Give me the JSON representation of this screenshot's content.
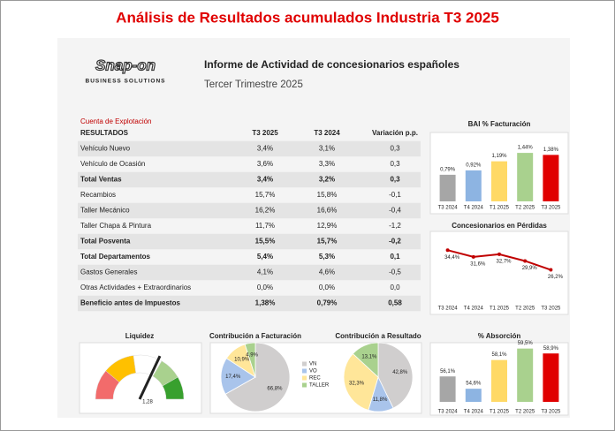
{
  "title": "Análisis de Resultados acumulados Industria T3 2025",
  "logo": {
    "brand": "Snap-on",
    "tagline": "BUSINESS SOLUTIONS"
  },
  "header": {
    "title": "Informe de Actividad de concesionarios españoles",
    "subtitle": "Tercer Trimestre 2025"
  },
  "table": {
    "caption": "Cuenta de Explotación",
    "columns": [
      "RESULTADOS",
      "T3 2025",
      "T3 2024",
      "Variación p.p."
    ],
    "rows": [
      [
        "Vehículo Nuevo",
        "3,4%",
        "3,1%",
        "0,3"
      ],
      [
        "Vehículo de Ocasión",
        "3,6%",
        "3,3%",
        "0,3"
      ],
      [
        "Total Ventas",
        "3,4%",
        "3,2%",
        "0,3"
      ],
      [
        "Recambios",
        "15,7%",
        "15,8%",
        "-0,1"
      ],
      [
        "Taller Mecánico",
        "16,2%",
        "16,6%",
        "-0,4"
      ],
      [
        "Taller Chapa & Pintura",
        "11,7%",
        "12,9%",
        "-1,2"
      ],
      [
        "Total Posventa",
        "15,5%",
        "15,7%",
        "-0,2"
      ],
      [
        "Total Departamentos",
        "5,4%",
        "5,3%",
        "0,1"
      ],
      [
        "Gastos Generales",
        "4,1%",
        "4,6%",
        "-0,5"
      ],
      [
        "Otras Actividades + Extraordinarios",
        "0,0%",
        "0,0%",
        "0,0"
      ],
      [
        "Beneficio antes de Impuestos",
        "1,38%",
        "0,79%",
        "0,58"
      ]
    ],
    "bold_rows": [
      2,
      6,
      7,
      10
    ]
  },
  "chart_data": [
    {
      "type": "bar",
      "title": "BAI % Facturación",
      "categories": [
        "T3 2024",
        "T4 2024",
        "T1 2025",
        "T2 2025",
        "T3 2025"
      ],
      "values": [
        0.79,
        0.92,
        1.19,
        1.44,
        1.38
      ],
      "value_labels": [
        "0,79%",
        "0,92%",
        "1,19%",
        "1,44%",
        "1,38%"
      ],
      "colors": [
        "#a6a6a6",
        "#8db4e2",
        "#ffd966",
        "#a9d18e",
        "#e00000"
      ],
      "ylim": [
        0,
        1.6
      ]
    },
    {
      "type": "line",
      "title": "Concesionarios en Pérdidas",
      "categories": [
        "T3 2024",
        "T4 2024",
        "T1 2025",
        "T2 2025",
        "T3 2025"
      ],
      "values": [
        34.4,
        31.6,
        32.7,
        29.9,
        26.2
      ],
      "value_labels": [
        "34,4%",
        "31,6%",
        "32,7%",
        "29,9%",
        "26,2%"
      ],
      "color": "#c00000",
      "ylim": [
        15,
        40
      ]
    },
    {
      "type": "gauge",
      "title": "Liquidez",
      "value": 1.28,
      "value_label": "1,28",
      "ylim": [
        0,
        2
      ]
    },
    {
      "type": "pie",
      "title": "Contribución a Facturación",
      "categories": [
        "VN",
        "VO",
        "REC",
        "TALLER"
      ],
      "values": [
        66.8,
        17.4,
        10.9,
        4.9
      ],
      "value_labels": [
        "66,8%",
        "17,4%",
        "10,9%",
        "4,9%"
      ],
      "colors": [
        "#d0cece",
        "#a9c4eb",
        "#ffe699",
        "#a9d18e"
      ]
    },
    {
      "type": "pie",
      "title": "Contribución a Resultado",
      "values": [
        42.8,
        11.8,
        32.3,
        13.1
      ],
      "value_labels": [
        "42,8%",
        "11,8%",
        "32,3%",
        "13,1%"
      ],
      "colors": [
        "#d0cece",
        "#a9c4eb",
        "#ffe699",
        "#a9d18e"
      ]
    },
    {
      "type": "bar",
      "title": "% Absorción",
      "categories": [
        "T3 2024",
        "T4 2024",
        "T1 2025",
        "T2 2025",
        "T3 2025"
      ],
      "values": [
        56.1,
        54.6,
        58.1,
        59.5,
        58.9
      ],
      "value_labels": [
        "56,1%",
        "54,6%",
        "58,1%",
        "59,5%",
        "58,9%"
      ],
      "colors": [
        "#a6a6a6",
        "#8db4e2",
        "#ffd966",
        "#a9d18e",
        "#e00000"
      ],
      "ylim": [
        53,
        60
      ]
    }
  ]
}
